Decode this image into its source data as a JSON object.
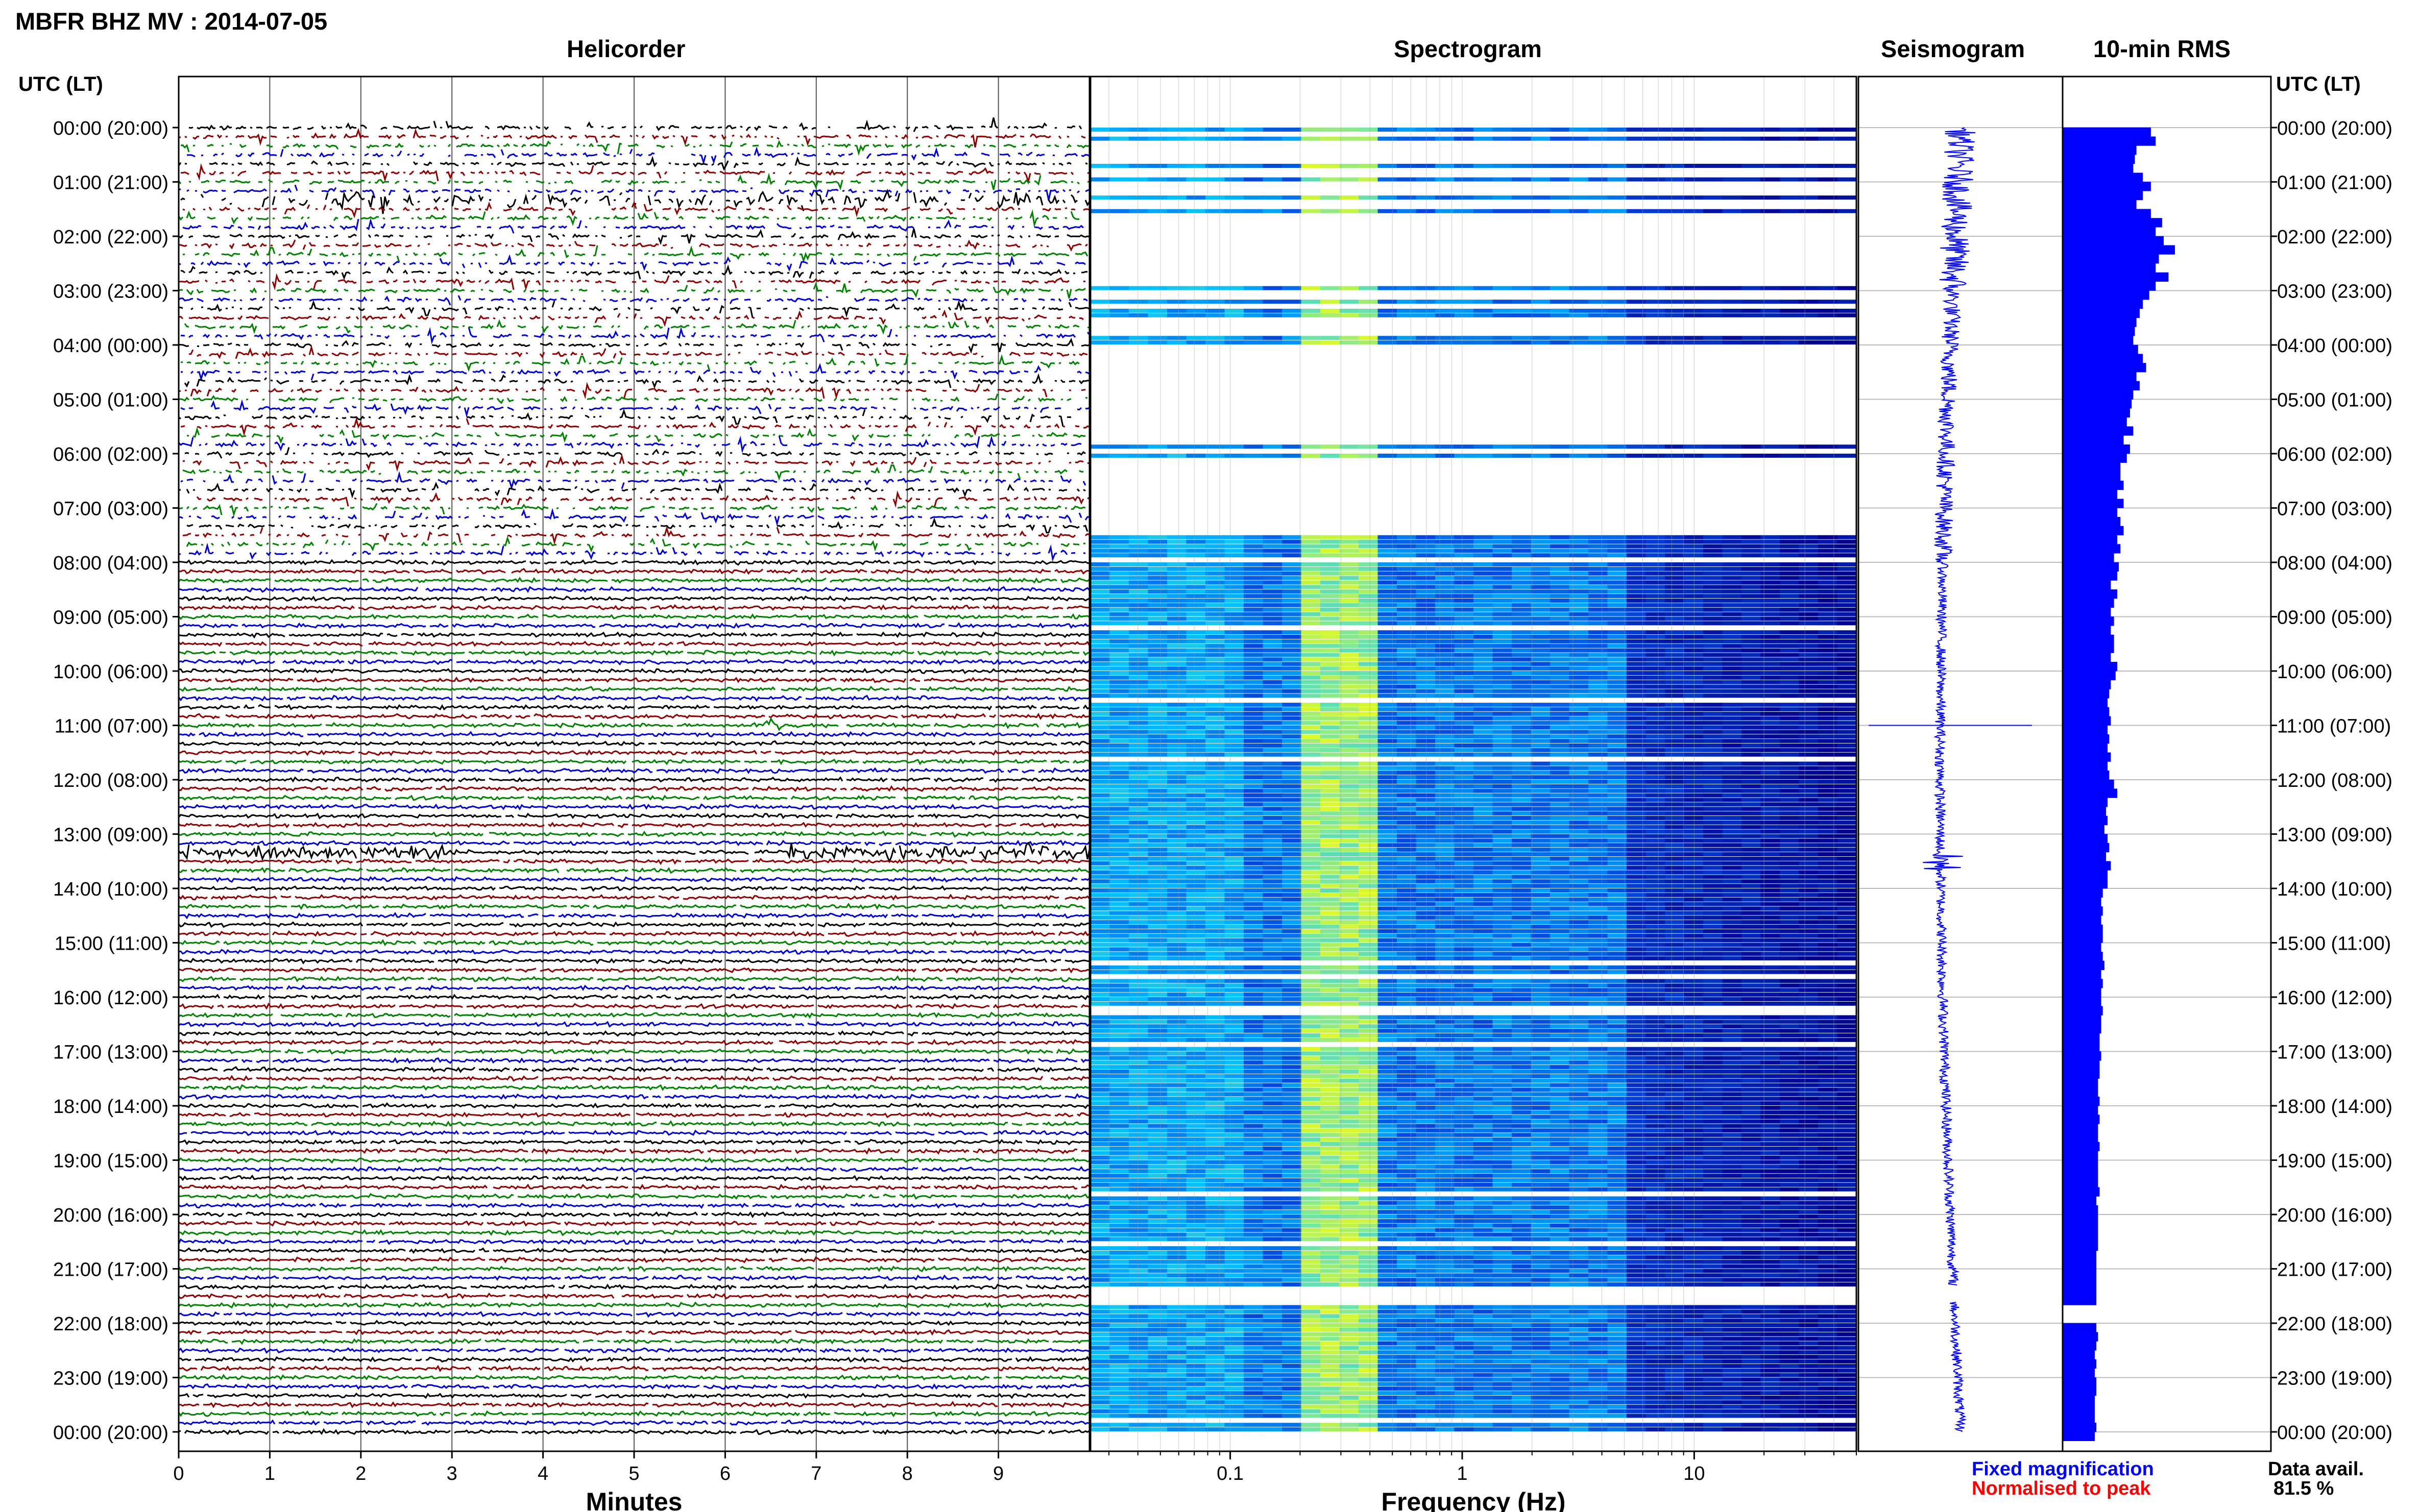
{
  "page_title": "MBFR BHZ MV : 2014-07-05",
  "panel_titles": {
    "helicorder": "Helicorder",
    "spectrogram": "Spectrogram",
    "seismogram": "Seismogram",
    "rms": "10-min RMS"
  },
  "time_axis_header": "UTC (LT)",
  "time_labels": [
    "00:00 (20:00)",
    "01:00 (21:00)",
    "02:00 (22:00)",
    "03:00 (23:00)",
    "04:00 (00:00)",
    "05:00 (01:00)",
    "06:00 (02:00)",
    "07:00 (03:00)",
    "08:00 (04:00)",
    "09:00 (05:00)",
    "10:00 (06:00)",
    "11:00 (07:00)",
    "12:00 (08:00)",
    "13:00 (09:00)",
    "14:00 (10:00)",
    "15:00 (11:00)",
    "16:00 (12:00)",
    "17:00 (13:00)",
    "18:00 (14:00)",
    "19:00 (15:00)",
    "20:00 (16:00)",
    "21:00 (17:00)",
    "22:00 (18:00)",
    "23:00 (19:00)",
    "00:00 (20:00)"
  ],
  "legend": {
    "fixed": "Fixed magnification",
    "normalised": "Normalised to peak",
    "avail_label": "Data avail.",
    "avail_value": "81.5 %"
  },
  "colors": {
    "trace_cycle": [
      "#000000",
      "#8b0000",
      "#008000",
      "#0000cd"
    ],
    "rms_bar": "#0000ff",
    "seismogram": "#0000ff",
    "fixed_text": "#0000ff",
    "normalised_text": "#ff0000",
    "spectrogram_low": "#00008b",
    "spectrogram_mid": "#00bfff",
    "spectrogram_high": "#ffff00"
  },
  "chart_data": [
    {
      "type": "line",
      "name": "helicorder",
      "title": "Helicorder",
      "xlabel": "Minutes",
      "x_ticks": [
        0,
        1,
        2,
        3,
        4,
        5,
        6,
        7,
        8,
        9
      ],
      "xlim": [
        0,
        10
      ],
      "rows_per_hour": 6,
      "noisy_rows_until_hour": 8,
      "high_amplitude_events": [
        {
          "hour": 1.3,
          "minute_start": 0,
          "minute_end": 10
        },
        {
          "hour": 13.4,
          "minute_start": 0,
          "minute_end": 3
        },
        {
          "hour": 13.4,
          "minute_start": 6.6,
          "minute_end": 10
        },
        {
          "hour": 11.0,
          "minute_start": 6.4,
          "minute_end": 6.6
        }
      ]
    },
    {
      "type": "heatmap",
      "name": "spectrogram",
      "title": "Spectrogram",
      "xlabel": "Frequency (Hz)",
      "x_scale": "log",
      "xlim": [
        0.025,
        50
      ],
      "x_ticks": [
        0.1,
        1,
        10
      ],
      "peak_band_hz": [
        0.22,
        0.45
      ],
      "gap_hours": [
        [
          1.6,
          2.7
        ],
        [
          4.0,
          5.8
        ],
        [
          6.1,
          7.3
        ],
        [
          21.3,
          21.6
        ]
      ]
    },
    {
      "type": "line",
      "name": "seismogram",
      "title": "Seismogram",
      "gap_hours": [
        [
          21.3,
          21.6
        ]
      ]
    },
    {
      "type": "bar",
      "name": "rms",
      "title": "10-min RMS",
      "orientation": "horizontal",
      "values": [
        55,
        58,
        46,
        45,
        44,
        50,
        55,
        50,
        46,
        55,
        62,
        58,
        63,
        70,
        60,
        58,
        66,
        58,
        54,
        50,
        48,
        46,
        45,
        44,
        47,
        50,
        52,
        46,
        48,
        44,
        43,
        42,
        40,
        44,
        38,
        42,
        40,
        36,
        36,
        38,
        34,
        38,
        34,
        36,
        38,
        34,
        36,
        32,
        35,
        34,
        30,
        34,
        32,
        30,
        32,
        30,
        32,
        32,
        30,
        34,
        33,
        30,
        29,
        28,
        29,
        30,
        28,
        29,
        28,
        30,
        28,
        29,
        32,
        34,
        28,
        27,
        28,
        26,
        28,
        29,
        27,
        30,
        28,
        28,
        25,
        24,
        25,
        24,
        25,
        25,
        24,
        25,
        26,
        24,
        25,
        24,
        24,
        25,
        24,
        24,
        23,
        23,
        24,
        23,
        23,
        22,
        22,
        23,
        22,
        23,
        22,
        22,
        23,
        22,
        22,
        22,
        22,
        23,
        21,
        22,
        22,
        22,
        22,
        22,
        21,
        21,
        21,
        21,
        21,
        21,
        null,
        null,
        21,
        22,
        21,
        20,
        21,
        20,
        21,
        21,
        20,
        20,
        20,
        21,
        20
      ],
      "xlim": [
        0,
        130
      ]
    }
  ]
}
